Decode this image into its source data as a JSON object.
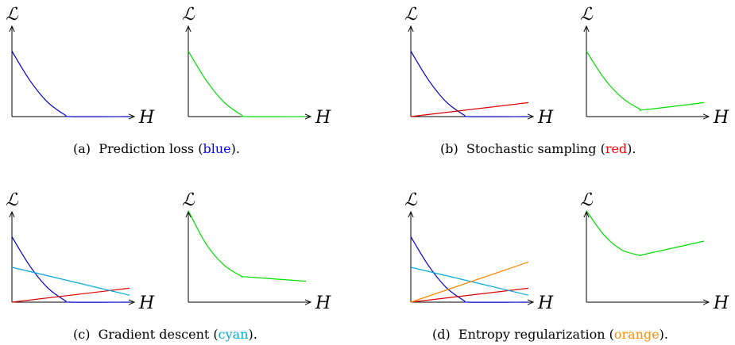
{
  "captions": {
    "a": {
      "prefix": "(a)  Prediction loss (",
      "word": "blue",
      "suffix": ").",
      "color": "#0000ff"
    },
    "b": {
      "prefix": "(b)  Stochastic sampling (",
      "word": "red",
      "suffix": ").",
      "color": "#ff0000"
    },
    "c": {
      "prefix": "(c)  Gradient descent (",
      "word": "cyan",
      "suffix": ").",
      "color": "#00aadd"
    },
    "d": {
      "prefix": "(d)  Entropy regularization (",
      "word": "orange",
      "suffix": ").",
      "color": "#ff8c00"
    }
  },
  "axis_labels": {
    "y": "ℒ",
    "x": "H"
  },
  "colors": {
    "blue": "#0000cc",
    "red": "#dd0000",
    "cyan": "#00aadd",
    "orange": "#ff8800",
    "green": "#00dd00",
    "axis": "#000000"
  },
  "chart_data": [
    {
      "type": "line",
      "panel": "a-left",
      "xlim": [
        0,
        1
      ],
      "ylim": [
        0,
        1
      ],
      "series": [
        {
          "color": "blue",
          "x": [
            0,
            0.15,
            0.3,
            0.45,
            0.5,
            1.0
          ],
          "y": [
            0.75,
            0.42,
            0.17,
            0.02,
            0,
            0
          ]
        }
      ]
    },
    {
      "type": "line",
      "panel": "a-right",
      "xlim": [
        0,
        1
      ],
      "ylim": [
        0,
        1
      ],
      "series": [
        {
          "color": "green",
          "x": [
            0,
            0.15,
            0.3,
            0.45,
            0.5,
            1.0
          ],
          "y": [
            0.75,
            0.42,
            0.17,
            0.02,
            0,
            0
          ]
        }
      ]
    },
    {
      "type": "line",
      "panel": "b-left",
      "xlim": [
        0,
        1
      ],
      "ylim": [
        0,
        1
      ],
      "series": [
        {
          "color": "blue",
          "x": [
            0,
            0.15,
            0.3,
            0.45,
            0.5,
            1.0
          ],
          "y": [
            0.75,
            0.42,
            0.17,
            0.02,
            0,
            0
          ]
        },
        {
          "color": "red",
          "x": [
            0,
            1.0
          ],
          "y": [
            0,
            0.16
          ]
        }
      ]
    },
    {
      "type": "line",
      "panel": "b-right",
      "xlim": [
        0,
        1
      ],
      "ylim": [
        0,
        1
      ],
      "series": [
        {
          "color": "green",
          "x": [
            0,
            0.15,
            0.3,
            0.45,
            0.5,
            1.0
          ],
          "y": [
            0.75,
            0.44,
            0.22,
            0.09,
            0.08,
            0.16
          ]
        }
      ]
    },
    {
      "type": "line",
      "panel": "c-left",
      "xlim": [
        0,
        1
      ],
      "ylim": [
        0,
        1
      ],
      "series": [
        {
          "color": "blue",
          "x": [
            0,
            0.15,
            0.3,
            0.45,
            0.5,
            1.0
          ],
          "y": [
            0.75,
            0.42,
            0.17,
            0.02,
            0,
            0
          ]
        },
        {
          "color": "red",
          "x": [
            0,
            1.0
          ],
          "y": [
            0,
            0.16
          ]
        },
        {
          "color": "cyan",
          "x": [
            0,
            1.0
          ],
          "y": [
            0.4,
            0.08
          ]
        }
      ]
    },
    {
      "type": "line",
      "panel": "c-right",
      "xlim": [
        0,
        1
      ],
      "ylim": [
        0,
        1
      ],
      "series": [
        {
          "color": "green",
          "x": [
            0,
            0.15,
            0.3,
            0.45,
            0.5,
            1.0
          ],
          "y": [
            1.05,
            0.67,
            0.43,
            0.3,
            0.29,
            0.24
          ]
        }
      ]
    },
    {
      "type": "line",
      "panel": "d-left",
      "xlim": [
        0,
        1
      ],
      "ylim": [
        0,
        1
      ],
      "series": [
        {
          "color": "blue",
          "x": [
            0,
            0.15,
            0.3,
            0.45,
            0.5,
            1.0
          ],
          "y": [
            0.75,
            0.42,
            0.17,
            0.02,
            0,
            0
          ]
        },
        {
          "color": "red",
          "x": [
            0,
            1.0
          ],
          "y": [
            0,
            0.16
          ]
        },
        {
          "color": "cyan",
          "x": [
            0,
            1.0
          ],
          "y": [
            0.4,
            0.08
          ]
        },
        {
          "color": "orange",
          "x": [
            0,
            1.0
          ],
          "y": [
            0,
            0.46
          ]
        }
      ]
    },
    {
      "type": "line",
      "panel": "d-right",
      "xlim": [
        0,
        1
      ],
      "ylim": [
        0,
        1
      ],
      "series": [
        {
          "color": "green",
          "x": [
            0,
            0.15,
            0.3,
            0.45,
            0.5,
            1.0
          ],
          "y": [
            1.05,
            0.77,
            0.6,
            0.54,
            0.55,
            0.7
          ]
        }
      ]
    }
  ]
}
